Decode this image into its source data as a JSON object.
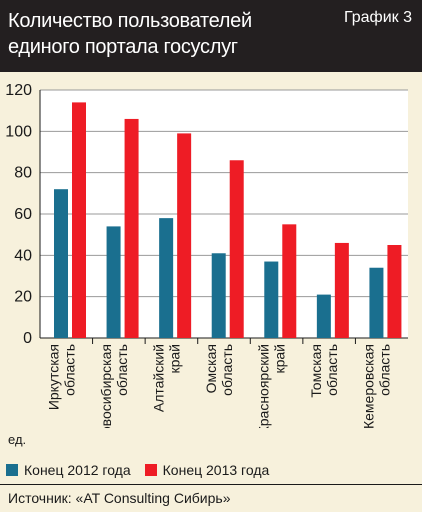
{
  "header": {
    "title_line1": "Количество пользователей",
    "title_line2": "единого портала госуслуг",
    "chart_number": "График 3"
  },
  "unit_label": "ед.",
  "legend": {
    "items": [
      {
        "label": "Конец 2012 года",
        "color": "#1a6f8f"
      },
      {
        "label": "Конец 2013 года",
        "color": "#ee1c25"
      }
    ]
  },
  "source": "Источник: «AT Consulting Сибирь»",
  "chart_data": {
    "type": "bar",
    "categories": [
      [
        "Иркутская",
        "область"
      ],
      [
        "Новосибирская",
        "область"
      ],
      [
        "Алтайский",
        "край"
      ],
      [
        "Омская",
        "область"
      ],
      [
        "Красноярский",
        "край"
      ],
      [
        "Томская",
        "область"
      ],
      [
        "Кемеровская",
        "область"
      ]
    ],
    "series": [
      {
        "name": "Конец 2012 года",
        "values": [
          72,
          54,
          58,
          41,
          37,
          21,
          34
        ]
      },
      {
        "name": "Конец 2013 года",
        "values": [
          114,
          106,
          99,
          86,
          55,
          46,
          45
        ]
      }
    ],
    "ylim": [
      0,
      120
    ],
    "yticks": [
      0,
      20,
      40,
      60,
      80,
      100,
      120
    ],
    "grid": true,
    "legend_position": "bottom"
  }
}
